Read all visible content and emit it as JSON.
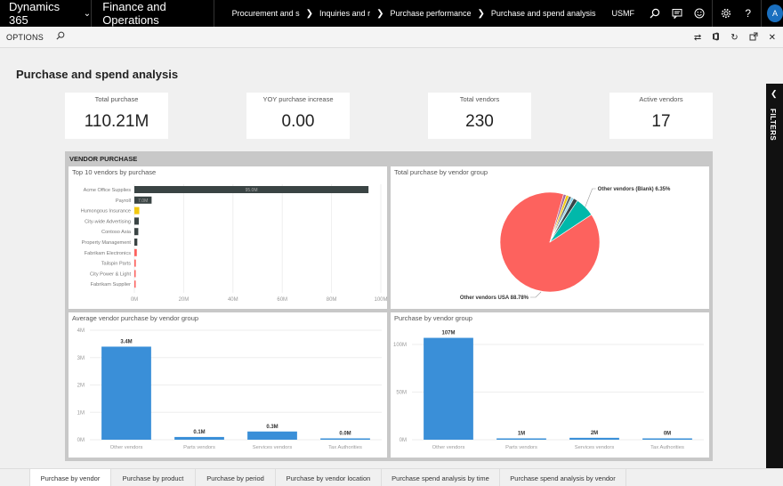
{
  "topbar": {
    "brand": "Dynamics 365",
    "app": "Finance and Operations",
    "breadcrumbs": [
      "Procurement and s",
      "Inquiries and r",
      "Purchase performance",
      "Purchase and spend analysis"
    ],
    "company": "USMF",
    "avatar": "A",
    "icons": [
      "search-icon",
      "message-icon",
      "smiley-icon",
      "gear-icon",
      "help-icon"
    ]
  },
  "options": {
    "label": "OPTIONS"
  },
  "page": {
    "title": "Purchase and spend analysis"
  },
  "kpis": [
    {
      "label": "Total purchase",
      "value": "110.21M"
    },
    {
      "label": "YOY purchase increase",
      "value": "0.00"
    },
    {
      "label": "Total vendors",
      "value": "230"
    },
    {
      "label": "Active vendors",
      "value": "17"
    }
  ],
  "filters": {
    "label": "FILTERS"
  },
  "section": {
    "title": "VENDOR PURCHASE"
  },
  "tiles": {
    "top10": "Top 10 vendors by purchase",
    "pie": "Total purchase by vendor group",
    "avg": "Average vendor purchase by vendor group",
    "bygroup": "Purchase by vendor group"
  },
  "chart_data": [
    {
      "type": "bar",
      "orientation": "horizontal",
      "title": "Top 10 vendors by purchase",
      "categories": [
        "Acme Office Supplies",
        "Payroll",
        "Humongous Insurance",
        "City-wide Advertising",
        "Contoso Asia",
        "Property Management",
        "Fabrikam Electronics",
        "Tailspin Parts",
        "City Power & Light",
        "Fabrikam Supplier"
      ],
      "values": [
        95,
        7,
        2,
        1.8,
        1.6,
        1.2,
        1,
        0.6,
        0.4,
        0.3
      ],
      "data_labels": [
        "95.0M",
        "7.0M",
        "",
        "",
        "",
        "",
        "",
        "",
        "",
        ""
      ],
      "colors": [
        "#3a4444",
        "#3a4444",
        "#f2c80f",
        "#3a4444",
        "#3a4444",
        "#3a4444",
        "#fd625e",
        "#fd625e",
        "#fd625e",
        "#fd625e"
      ],
      "ticks": [
        "0M",
        "20M",
        "40M",
        "60M",
        "80M",
        "100M"
      ],
      "xlim": [
        0,
        100
      ]
    },
    {
      "type": "pie",
      "title": "Total purchase by vendor group",
      "slices": [
        {
          "label": "Other vendors USA 88.78%",
          "value": 88.78,
          "color": "#fd625e"
        },
        {
          "label": "",
          "value": 0.9,
          "color": "#a66999"
        },
        {
          "label": "",
          "value": 0.9,
          "color": "#f2c80f"
        },
        {
          "label": "",
          "value": 0.9,
          "color": "#5f6b6d"
        },
        {
          "label": "",
          "value": 0.8,
          "color": "#8ad4eb"
        },
        {
          "label": "",
          "value": 1.4,
          "color": "#374649"
        },
        {
          "label": "Other vendors (Blank) 6.35%",
          "value": 6.35,
          "color": "#01b8aa"
        }
      ]
    },
    {
      "type": "bar",
      "title": "Average vendor purchase by vendor group",
      "categories": [
        "Other vendors",
        "Parts vendors",
        "Services vendors",
        "Tax Authorities"
      ],
      "values": [
        3.4,
        0.1,
        0.3,
        0.0
      ],
      "data_labels": [
        "3.4M",
        "0.1M",
        "0.3M",
        "0.0M"
      ],
      "ticks": [
        "0M",
        "1M",
        "2M",
        "3M",
        "4M"
      ],
      "ylim": [
        0,
        4
      ],
      "color": "#3a8fd8"
    },
    {
      "type": "bar",
      "title": "Purchase by vendor group",
      "categories": [
        "Other vendors",
        "Parts vendors",
        "Services vendors",
        "Tax Authorities"
      ],
      "values": [
        107,
        1,
        2,
        0
      ],
      "data_labels": [
        "107M",
        "1M",
        "2M",
        "0M"
      ],
      "ticks": [
        "0M",
        "50M",
        "100M"
      ],
      "ylim": [
        0,
        115
      ],
      "color": "#3a8fd8"
    }
  ],
  "tabs": [
    "Purchase by vendor",
    "Purchase by product",
    "Purchase by period",
    "Purchase by vendor location",
    "Purchase spend analysis by time",
    "Purchase spend analysis by vendor"
  ]
}
